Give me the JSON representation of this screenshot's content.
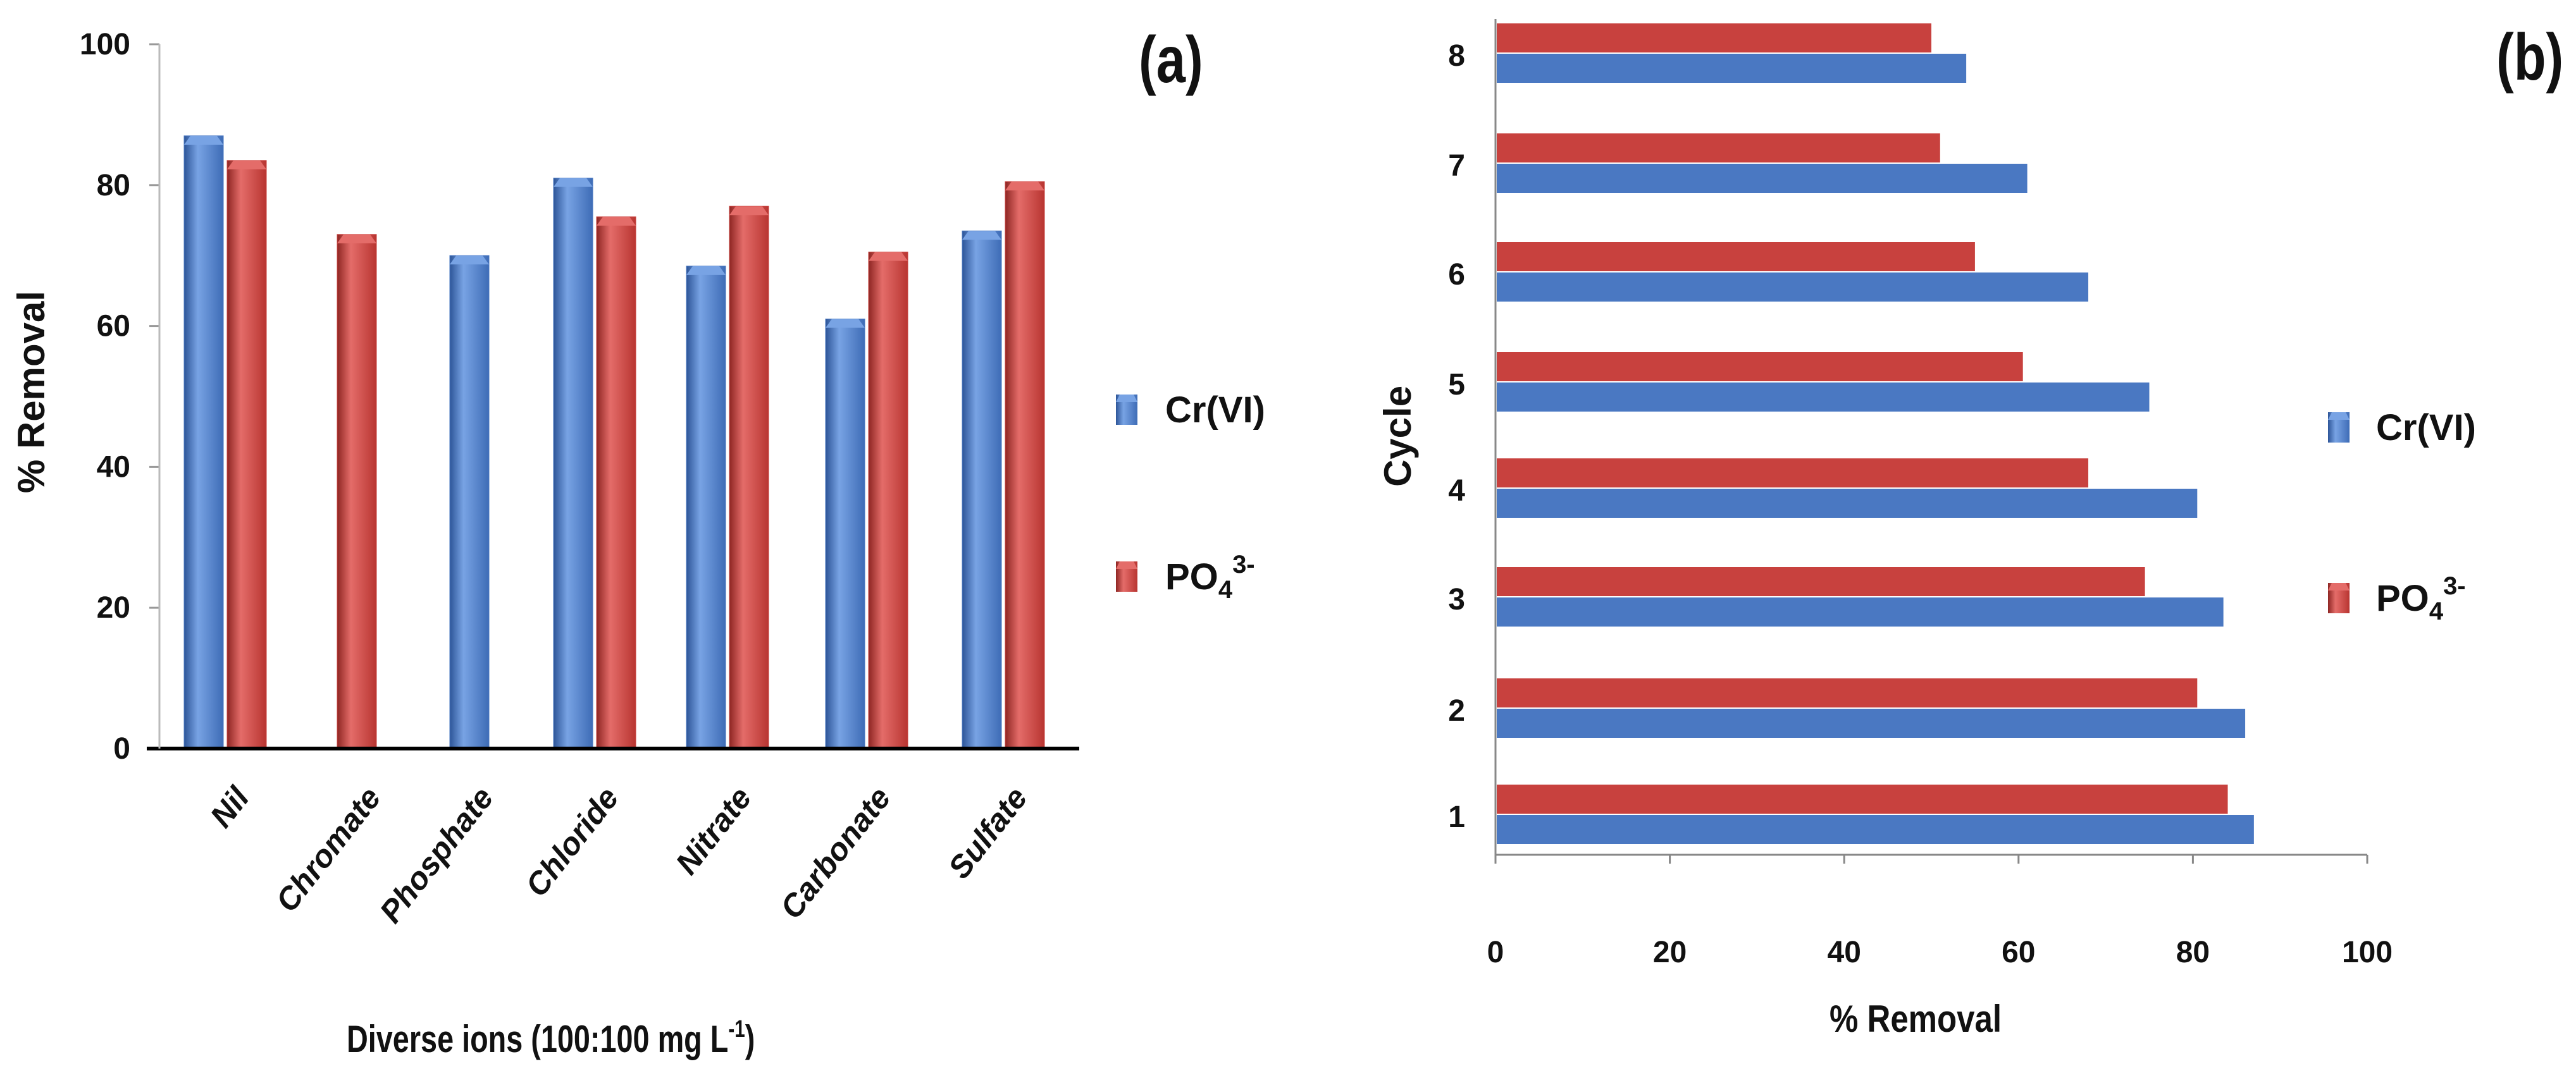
{
  "colors": {
    "cr": "#4a78c2",
    "cr_light": "#78a3e4",
    "cr_dark": "#2d5598",
    "po4": "#c8413e",
    "po4_light": "#e46c69",
    "po4_dark": "#8e2623",
    "axis": "#000000",
    "gridaxis": "#888888"
  },
  "chart_data": [
    {
      "panel": "a",
      "type": "bar",
      "panel_label": "(a)",
      "title": "",
      "xlabel": "Diverse ions (100:100 mg L",
      "xlabel_sup": "-1",
      "xlabel_close": ")",
      "ylabel": "% Removal",
      "ylim": [
        0,
        100
      ],
      "yticks": [
        0,
        20,
        40,
        60,
        80,
        100
      ],
      "categories": [
        "Nil",
        "Chromate",
        "Phosphate",
        "Chloride",
        "Nitrate",
        "Carbonate",
        "Sulfate"
      ],
      "series": [
        {
          "name": "Cr(VI)",
          "key": "cr",
          "values": [
            87,
            null,
            70,
            81,
            68.5,
            61,
            73.5
          ]
        },
        {
          "name": "PO4 3-",
          "key": "po4",
          "values": [
            83.5,
            73,
            null,
            75.5,
            77,
            70.5,
            80.5
          ]
        }
      ],
      "legend": [
        {
          "label": "Cr(VI)",
          "sub": "",
          "sup": "",
          "key": "cr"
        },
        {
          "label": "PO",
          "sub": "4",
          "sup": "3-",
          "key": "po4"
        }
      ],
      "legend_position": "right"
    },
    {
      "panel": "b",
      "type": "bar",
      "orientation": "horizontal",
      "panel_label": "(b)",
      "title": "",
      "xlabel": "% Removal",
      "ylabel": "Cycle",
      "xlim": [
        0,
        100
      ],
      "xticks": [
        0,
        20,
        40,
        60,
        80,
        100
      ],
      "categories": [
        "1",
        "2",
        "3",
        "4",
        "5",
        "6",
        "7",
        "8"
      ],
      "series": [
        {
          "name": "Cr(VI)",
          "key": "cr",
          "values": [
            87,
            86,
            83.5,
            80.5,
            75,
            68,
            61,
            54
          ]
        },
        {
          "name": "PO4 3-",
          "key": "po4",
          "values": [
            84,
            80.5,
            74.5,
            68,
            60.5,
            55,
            51,
            50
          ]
        }
      ],
      "legend": [
        {
          "label": "Cr(VI)",
          "sub": "",
          "sup": "",
          "key": "cr"
        },
        {
          "label": "PO",
          "sub": "4",
          "sup": "3-",
          "key": "po4"
        }
      ],
      "legend_position": "right"
    }
  ]
}
